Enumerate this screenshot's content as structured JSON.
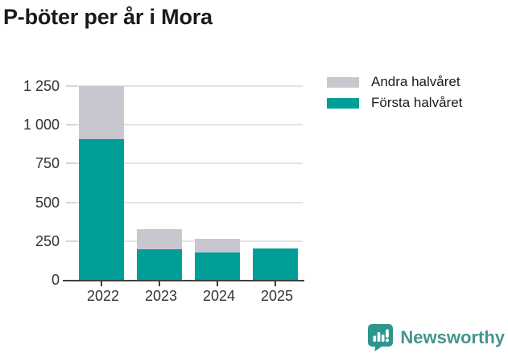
{
  "chart_data": {
    "type": "bar",
    "stacked": true,
    "title": "P-böter per år i Mora",
    "categories": [
      "2022",
      "2023",
      "2024",
      "2025"
    ],
    "series": [
      {
        "name": "Första halvåret",
        "color": "#009e96",
        "values": [
          910,
          197,
          175,
          200
        ]
      },
      {
        "name": "Andra halvåret",
        "color": "#c8c6ce",
        "values": [
          340,
          129,
          91,
          0
        ]
      }
    ],
    "legend": [
      {
        "label": "Andra halvåret",
        "color": "#c8c6ce"
      },
      {
        "label": "Första halvåret",
        "color": "#009e96"
      }
    ],
    "legend_position": "top-right",
    "xlabel": "",
    "ylabel": "",
    "ylim": [
      0,
      1250
    ],
    "grid": "horizontal",
    "yticks": [
      {
        "value": 0,
        "label": "0"
      },
      {
        "value": 250,
        "label": "250"
      },
      {
        "value": 500,
        "label": "500"
      },
      {
        "value": 750,
        "label": "750"
      },
      {
        "value": 1000,
        "label": "1 000"
      },
      {
        "value": 1250,
        "label": "1 250"
      }
    ]
  },
  "footer": {
    "brand": "Newsworthy"
  },
  "colors": {
    "bar_teal": "#009e96",
    "bar_gray": "#c8c6ce",
    "brand_teal": "#46948e",
    "icon_teal": "#2d968e",
    "text_dark": "#1a1a1a",
    "axis_text": "#333333",
    "gridline": "#e4e4e4",
    "axis_line": "#3f3f3f"
  }
}
